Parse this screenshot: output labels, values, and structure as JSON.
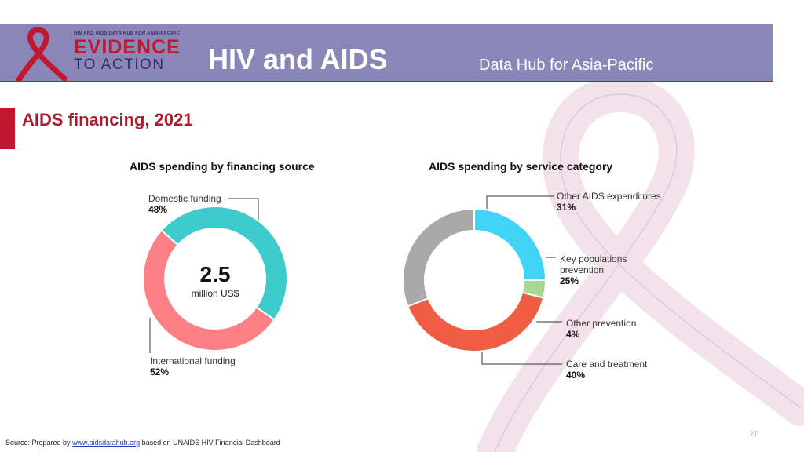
{
  "header": {
    "logo_top": "HIV AND AIDS DATA HUB FOR ASIA-PACIFIC",
    "logo_line1": "EVIDENCE",
    "logo_line2": "TO ACTION",
    "title": "HIV and AIDS",
    "subtitle": "Data Hub for Asia-Pacific"
  },
  "page_title": "AIDS financing, 2021",
  "colors": {
    "domestic": "#3ecbcb",
    "international": "#fb7f84",
    "other_aids": "#a9a9a9",
    "key_populations": "#40d3f7",
    "other_prevention": "#a8d693",
    "care_treatment": "#f05d42"
  },
  "chart_data": [
    {
      "type": "pie",
      "title": "AIDS spending by financing source",
      "center_value": "2.5",
      "center_unit": "million US$",
      "slices": [
        {
          "label": "Domestic funding",
          "value": 48,
          "value_label": "48%"
        },
        {
          "label": "International funding",
          "value": 52,
          "value_label": "52%"
        }
      ]
    },
    {
      "type": "pie",
      "title": "AIDS spending by service category",
      "slices": [
        {
          "label": "Other AIDS expenditures",
          "value": 31,
          "value_label": "31%"
        },
        {
          "label": "Key populations prevention",
          "value": 25,
          "value_label": "25%"
        },
        {
          "label": "Other prevention",
          "value": 4,
          "value_label": "4%"
        },
        {
          "label": "Care and treatment",
          "value": 40,
          "value_label": "40%"
        }
      ]
    }
  ],
  "footer": {
    "source_prefix": "Source: Prepared by",
    "source_link": "www.aidsdatahub.org",
    "source_suffix": "based on UNAIDS HIV Financial Dashboard",
    "page_number": "27"
  }
}
